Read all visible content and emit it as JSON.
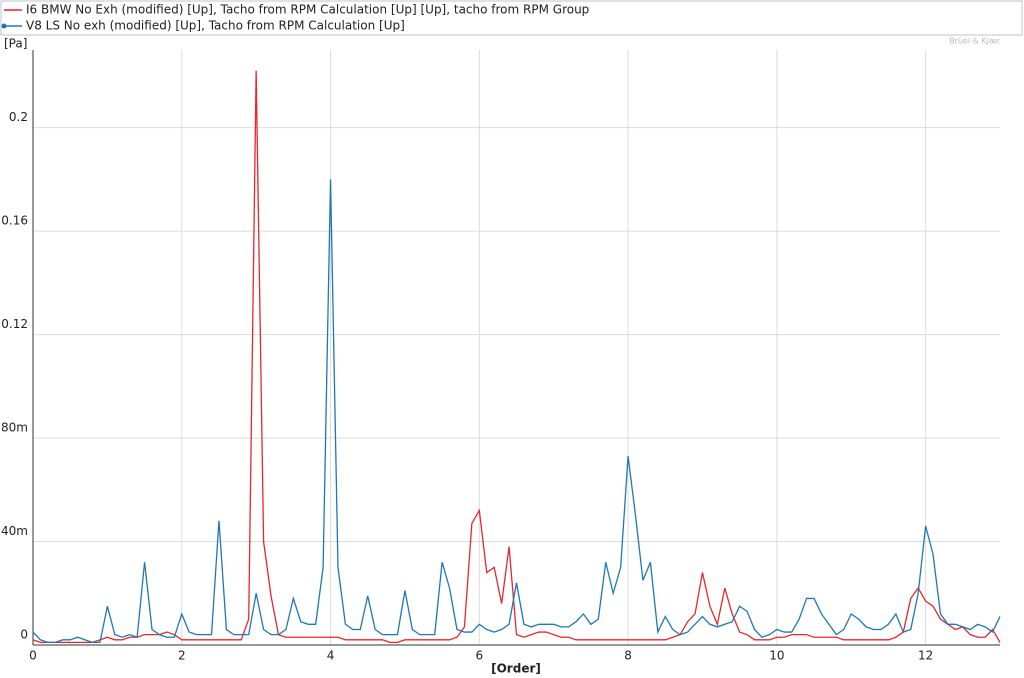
{
  "chart_data": {
    "type": "line",
    "y_label": "[Pa]",
    "x_label": "[Order]",
    "watermark": "Brüel & Kjær",
    "legend": "top",
    "grid": true,
    "xlim": [
      0,
      13
    ],
    "xticks": [
      0,
      2,
      4,
      6,
      8,
      10,
      12
    ],
    "ylim": [
      0,
      0.23
    ],
    "yticks": [
      0,
      {
        "value": 0.04,
        "label": "40m"
      },
      {
        "value": 0.08,
        "label": "80m"
      },
      0.12,
      0.16,
      0.2
    ],
    "x": [
      0,
      0.1,
      0.2,
      0.3,
      0.4,
      0.5,
      0.6,
      0.7,
      0.8,
      0.9,
      1,
      1.1,
      1.2,
      1.3,
      1.4,
      1.5,
      1.6,
      1.7,
      1.8,
      1.9,
      2,
      2.1,
      2.2,
      2.3,
      2.4,
      2.5,
      2.6,
      2.7,
      2.8,
      2.9,
      3,
      3.1,
      3.2,
      3.3,
      3.4,
      3.5,
      3.6,
      3.7,
      3.8,
      3.9,
      4,
      4.1,
      4.2,
      4.3,
      4.4,
      4.5,
      4.6,
      4.7,
      4.8,
      4.9,
      5,
      5.1,
      5.2,
      5.3,
      5.4,
      5.5,
      5.6,
      5.7,
      5.8,
      5.9,
      6,
      6.1,
      6.2,
      6.3,
      6.4,
      6.5,
      6.6,
      6.7,
      6.8,
      6.9,
      7,
      7.1,
      7.2,
      7.3,
      7.4,
      7.5,
      7.6,
      7.7,
      7.8,
      7.9,
      8,
      8.1,
      8.2,
      8.3,
      8.4,
      8.5,
      8.6,
      8.7,
      8.8,
      8.9,
      9,
      9.1,
      9.2,
      9.3,
      9.4,
      9.5,
      9.6,
      9.7,
      9.8,
      9.9,
      10,
      10.1,
      10.2,
      10.3,
      10.4,
      10.5,
      10.6,
      10.7,
      10.8,
      10.9,
      11,
      11.1,
      11.2,
      11.3,
      11.4,
      11.5,
      11.6,
      11.7,
      11.8,
      11.9,
      12,
      12.1,
      12.2,
      12.3,
      12.4,
      12.5,
      12.6,
      12.7,
      12.8,
      12.9,
      13
    ],
    "series": [
      {
        "name": "I6 BMW No Exh (modified) [Up], Tacho from RPM Calculation [Up] [Up], tacho from RPM Group",
        "color": "#e8262d",
        "marker": false,
        "values": [
          0.002,
          0.001,
          0.001,
          0.001,
          0.001,
          0.001,
          0.001,
          0.001,
          0.001,
          0.002,
          0.003,
          0.002,
          0.002,
          0.003,
          0.003,
          0.004,
          0.004,
          0.004,
          0.005,
          0.004,
          0.002,
          0.002,
          0.002,
          0.002,
          0.002,
          0.002,
          0.002,
          0.002,
          0.002,
          0.01,
          0.222,
          0.04,
          0.019,
          0.004,
          0.003,
          0.003,
          0.003,
          0.003,
          0.003,
          0.003,
          0.003,
          0.003,
          0.002,
          0.002,
          0.002,
          0.002,
          0.002,
          0.002,
          0.001,
          0.001,
          0.002,
          0.002,
          0.002,
          0.002,
          0.002,
          0.002,
          0.002,
          0.003,
          0.007,
          0.047,
          0.052,
          0.028,
          0.03,
          0.016,
          0.038,
          0.004,
          0.003,
          0.004,
          0.005,
          0.005,
          0.004,
          0.003,
          0.003,
          0.002,
          0.002,
          0.002,
          0.002,
          0.002,
          0.002,
          0.002,
          0.002,
          0.002,
          0.002,
          0.002,
          0.002,
          0.002,
          0.003,
          0.004,
          0.009,
          0.012,
          0.028,
          0.015,
          0.008,
          0.022,
          0.012,
          0.005,
          0.004,
          0.002,
          0.002,
          0.002,
          0.003,
          0.003,
          0.004,
          0.004,
          0.004,
          0.003,
          0.003,
          0.003,
          0.003,
          0.002,
          0.002,
          0.002,
          0.002,
          0.002,
          0.002,
          0.002,
          0.003,
          0.005,
          0.018,
          0.022,
          0.017,
          0.015,
          0.01,
          0.008,
          0.006,
          0.007,
          0.004,
          0.003,
          0.003,
          0.006,
          0.001
        ]
      },
      {
        "name": "V8 LS No exh (modified) [Up], Tacho from RPM Calculation [Up]",
        "color": "#1f77b4",
        "marker": true,
        "values": [
          0.005,
          0.002,
          0.001,
          0.001,
          0.002,
          0.002,
          0.003,
          0.002,
          0.001,
          0.001,
          0.015,
          0.004,
          0.003,
          0.004,
          0.003,
          0.032,
          0.006,
          0.004,
          0.003,
          0.003,
          0.012,
          0.005,
          0.004,
          0.004,
          0.004,
          0.048,
          0.006,
          0.004,
          0.004,
          0.004,
          0.02,
          0.006,
          0.004,
          0.004,
          0.006,
          0.018,
          0.009,
          0.008,
          0.008,
          0.03,
          0.18,
          0.03,
          0.008,
          0.006,
          0.006,
          0.019,
          0.006,
          0.004,
          0.004,
          0.004,
          0.021,
          0.006,
          0.004,
          0.004,
          0.004,
          0.032,
          0.022,
          0.006,
          0.005,
          0.005,
          0.008,
          0.006,
          0.005,
          0.006,
          0.008,
          0.024,
          0.008,
          0.007,
          0.008,
          0.008,
          0.008,
          0.007,
          0.007,
          0.009,
          0.012,
          0.008,
          0.01,
          0.032,
          0.02,
          0.03,
          0.073,
          0.05,
          0.025,
          0.032,
          0.005,
          0.011,
          0.006,
          0.004,
          0.005,
          0.008,
          0.011,
          0.008,
          0.007,
          0.008,
          0.009,
          0.015,
          0.013,
          0.006,
          0.003,
          0.004,
          0.006,
          0.005,
          0.005,
          0.01,
          0.018,
          0.018,
          0.012,
          0.008,
          0.004,
          0.006,
          0.012,
          0.01,
          0.007,
          0.006,
          0.006,
          0.008,
          0.012,
          0.005,
          0.006,
          0.02,
          0.046,
          0.035,
          0.012,
          0.008,
          0.008,
          0.007,
          0.006,
          0.008,
          0.007,
          0.005,
          0.011
        ]
      }
    ]
  }
}
